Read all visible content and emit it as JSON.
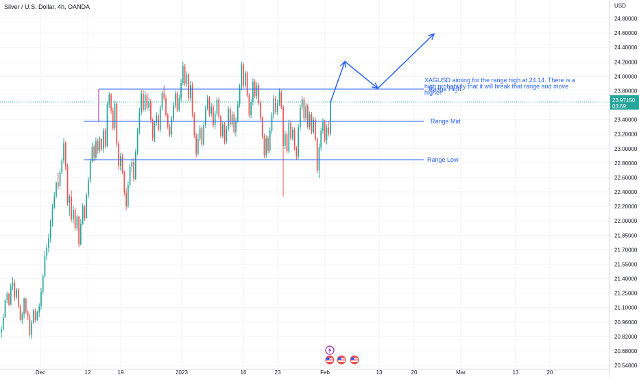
{
  "header": {
    "symbol_title": "Silver / U.S. Dollar, 4h, OANDA",
    "currency": "USD"
  },
  "price_tag": {
    "price": "23.97150",
    "countdown": "03:59"
  },
  "annotation": {
    "lines": [
      "XAGUSD aiming for the range high at 24.14. There is a",
      "high probability that it will break that range and move",
      "higher."
    ]
  },
  "colors": {
    "up": "#26a69a",
    "down": "#ef5350",
    "drawing": "#2962ff",
    "range_high_line": "#9c27b0",
    "grid": "#f0f3fa",
    "price_tag": "#26a69a"
  },
  "icons": [
    "lightning-event-icon",
    "us-flag-event-icon",
    "us-flag-event-icon",
    "us-flag-event-icon"
  ],
  "chart_data": {
    "type": "candlestick",
    "y_axis": {
      "scale": "linear",
      "range": [
        20.54,
        25.06
      ],
      "tick_labels": [
        "24.80000",
        "24.60000",
        "24.40000",
        "24.20000",
        "24.00000",
        "23.80000",
        "23.60000",
        "23.40000",
        "23.20000",
        "23.00000",
        "22.80000",
        "22.60000",
        "22.40000",
        "22.20000",
        "22.00000",
        "21.85000",
        "21.70000",
        "21.55000",
        "21.40000",
        "21.25000",
        "21.10000",
        "20.96000",
        "20.82000",
        "20.68000",
        "20.54000"
      ]
    },
    "x_axis": {
      "type": "date",
      "tick_labels": [
        "Dec",
        "12",
        "19",
        "2023",
        "16",
        "23",
        "Feb",
        "13",
        "20",
        "Mar",
        "13",
        "20"
      ]
    },
    "grid": true,
    "levels": [
      {
        "name": "Range High",
        "value": 24.14
      },
      {
        "name": "Range Mid",
        "value": 23.72
      },
      {
        "name": "Range Low",
        "value": 23.22
      }
    ],
    "last_price": 23.9715,
    "projection_path": [
      23.97,
      24.5,
      24.15,
      24.86
    ],
    "candles": [
      [
        20.97,
        21.05,
        20.9,
        21.01
      ],
      [
        21.01,
        21.21,
        20.99,
        21.16
      ],
      [
        21.16,
        21.4,
        21.16,
        21.39
      ],
      [
        21.39,
        21.5,
        21.35,
        21.47
      ],
      [
        21.47,
        21.49,
        21.31,
        21.33
      ],
      [
        21.33,
        21.61,
        21.32,
        21.57
      ],
      [
        21.57,
        21.69,
        21.52,
        21.61
      ],
      [
        21.61,
        21.66,
        21.38,
        21.43
      ],
      [
        21.43,
        21.55,
        21.4,
        21.53
      ],
      [
        21.53,
        21.55,
        21.29,
        21.31
      ],
      [
        21.31,
        21.33,
        21.12,
        21.13
      ],
      [
        21.13,
        21.24,
        21.08,
        21.21
      ],
      [
        21.21,
        21.43,
        21.15,
        21.41
      ],
      [
        21.41,
        21.42,
        21.21,
        21.24
      ],
      [
        21.24,
        21.26,
        21.13,
        21.18
      ],
      [
        21.18,
        21.21,
        20.91,
        20.94
      ],
      [
        20.94,
        21.13,
        20.88,
        21.1
      ],
      [
        21.1,
        21.28,
        21.08,
        21.25
      ],
      [
        21.25,
        21.28,
        21.1,
        21.13
      ],
      [
        21.13,
        21.25,
        21.12,
        21.23
      ],
      [
        21.23,
        21.35,
        21.17,
        21.31
      ],
      [
        21.31,
        21.55,
        21.26,
        21.5
      ],
      [
        21.5,
        21.73,
        21.46,
        21.7
      ],
      [
        21.7,
        22.03,
        21.68,
        21.96
      ],
      [
        21.96,
        22.12,
        21.91,
        22.07
      ],
      [
        22.07,
        22.26,
        22.01,
        22.2
      ],
      [
        22.2,
        22.44,
        22.14,
        22.42
      ],
      [
        22.42,
        22.64,
        22.35,
        22.6
      ],
      [
        22.6,
        22.8,
        22.58,
        22.74
      ],
      [
        22.74,
        22.94,
        22.72,
        22.92
      ],
      [
        22.92,
        23.05,
        22.83,
        22.88
      ],
      [
        22.88,
        23.1,
        22.84,
        23.06
      ],
      [
        23.06,
        23.24,
        23.03,
        23.21
      ],
      [
        23.21,
        23.5,
        23.17,
        23.44
      ],
      [
        23.44,
        23.46,
        23.08,
        23.13
      ],
      [
        23.13,
        23.17,
        22.62,
        22.66
      ],
      [
        22.66,
        22.77,
        22.49,
        22.74
      ],
      [
        22.74,
        22.82,
        22.41,
        22.44
      ],
      [
        22.44,
        22.62,
        22.39,
        22.57
      ],
      [
        22.57,
        22.59,
        22.3,
        22.33
      ],
      [
        22.33,
        22.5,
        22.29,
        22.48
      ],
      [
        22.48,
        22.49,
        22.08,
        22.12
      ],
      [
        22.12,
        22.45,
        22.1,
        22.38
      ],
      [
        22.38,
        22.65,
        22.37,
        22.61
      ],
      [
        22.61,
        22.63,
        22.42,
        22.46
      ],
      [
        22.46,
        22.79,
        22.45,
        22.76
      ],
      [
        22.76,
        22.99,
        22.72,
        22.95
      ],
      [
        22.95,
        23.23,
        22.92,
        23.2
      ],
      [
        23.2,
        23.44,
        23.18,
        23.39
      ],
      [
        23.39,
        23.42,
        23.2,
        23.25
      ],
      [
        23.25,
        23.51,
        23.21,
        23.46
      ],
      [
        23.46,
        23.49,
        23.29,
        23.34
      ],
      [
        23.34,
        23.52,
        23.31,
        23.49
      ],
      [
        23.49,
        23.5,
        23.33,
        23.36
      ],
      [
        23.36,
        23.63,
        23.31,
        23.6
      ],
      [
        23.6,
        23.63,
        23.37,
        23.4
      ],
      [
        23.4,
        23.97,
        23.38,
        23.94
      ],
      [
        23.94,
        24.1,
        23.89,
        24.07
      ],
      [
        24.07,
        24.09,
        23.82,
        23.86
      ],
      [
        23.86,
        23.9,
        23.6,
        23.63
      ],
      [
        23.63,
        23.99,
        23.6,
        23.95
      ],
      [
        23.95,
        23.97,
        23.38,
        23.43
      ],
      [
        23.43,
        23.46,
        23.09,
        23.14
      ],
      [
        23.14,
        23.31,
        23.08,
        23.26
      ],
      [
        23.26,
        23.3,
        23.03,
        23.06
      ],
      [
        23.06,
        23.08,
        22.75,
        22.79
      ],
      [
        22.79,
        22.85,
        22.56,
        22.61
      ],
      [
        22.61,
        22.94,
        22.59,
        22.89
      ],
      [
        22.89,
        23.17,
        22.85,
        23.13
      ],
      [
        23.13,
        23.24,
        23.06,
        23.19
      ],
      [
        23.19,
        23.24,
        22.93,
        22.97
      ],
      [
        22.97,
        23.36,
        22.95,
        23.32
      ],
      [
        23.32,
        23.63,
        23.28,
        23.59
      ],
      [
        23.59,
        23.9,
        23.55,
        23.84
      ],
      [
        23.84,
        24.13,
        23.8,
        24.08
      ],
      [
        24.08,
        24.13,
        23.84,
        23.87
      ],
      [
        23.87,
        24.12,
        23.84,
        24.06
      ],
      [
        24.06,
        24.09,
        23.87,
        23.9
      ],
      [
        23.9,
        24.03,
        23.85,
        23.98
      ],
      [
        23.98,
        24.01,
        23.7,
        23.74
      ],
      [
        23.74,
        23.76,
        23.46,
        23.5
      ],
      [
        23.5,
        23.73,
        23.45,
        23.7
      ],
      [
        23.7,
        23.84,
        23.66,
        23.79
      ],
      [
        23.79,
        23.82,
        23.58,
        23.61
      ],
      [
        23.61,
        23.93,
        23.58,
        23.9
      ],
      [
        23.9,
        24.12,
        23.86,
        24.09
      ],
      [
        24.09,
        24.19,
        23.99,
        24.02
      ],
      [
        24.02,
        24.06,
        23.78,
        23.8
      ],
      [
        23.8,
        23.83,
        23.62,
        23.65
      ],
      [
        23.65,
        23.68,
        23.52,
        23.55
      ],
      [
        23.55,
        23.79,
        23.51,
        23.75
      ],
      [
        23.75,
        23.97,
        23.71,
        23.93
      ],
      [
        23.93,
        24.12,
        23.89,
        24.08
      ],
      [
        24.08,
        24.11,
        23.84,
        23.87
      ],
      [
        23.87,
        24.07,
        23.84,
        24.02
      ],
      [
        24.02,
        24.27,
        23.98,
        24.22
      ],
      [
        24.22,
        24.5,
        24.19,
        24.44
      ],
      [
        24.44,
        24.47,
        24.18,
        24.21
      ],
      [
        24.21,
        24.37,
        24.17,
        24.33
      ],
      [
        24.33,
        24.35,
        23.98,
        24.02
      ],
      [
        24.02,
        24.25,
        23.99,
        24.19
      ],
      [
        24.19,
        24.23,
        23.77,
        23.81
      ],
      [
        23.81,
        23.84,
        23.5,
        23.54
      ],
      [
        23.54,
        23.57,
        23.25,
        23.3
      ],
      [
        23.3,
        23.55,
        23.27,
        23.49
      ],
      [
        23.49,
        23.67,
        23.46,
        23.63
      ],
      [
        23.63,
        23.66,
        23.39,
        23.42
      ],
      [
        23.42,
        23.71,
        23.4,
        23.67
      ],
      [
        23.67,
        23.93,
        23.63,
        23.89
      ],
      [
        23.89,
        24.06,
        23.86,
        24.02
      ],
      [
        24.02,
        24.05,
        23.78,
        23.82
      ],
      [
        23.82,
        23.96,
        23.78,
        23.91
      ],
      [
        23.91,
        23.94,
        23.64,
        23.67
      ],
      [
        23.67,
        23.86,
        23.62,
        23.82
      ],
      [
        23.82,
        24.04,
        23.79,
        24.0
      ],
      [
        24.0,
        24.03,
        23.75,
        23.78
      ],
      [
        23.78,
        23.8,
        23.5,
        23.53
      ],
      [
        23.53,
        23.72,
        23.5,
        23.68
      ],
      [
        23.68,
        23.71,
        23.42,
        23.46
      ],
      [
        23.46,
        23.66,
        23.43,
        23.62
      ],
      [
        23.62,
        23.92,
        23.59,
        23.88
      ],
      [
        23.88,
        23.91,
        23.65,
        23.68
      ],
      [
        23.68,
        23.85,
        23.65,
        23.81
      ],
      [
        23.81,
        23.84,
        23.55,
        23.58
      ],
      [
        23.58,
        23.77,
        23.52,
        23.73
      ],
      [
        23.73,
        23.99,
        23.7,
        23.94
      ],
      [
        23.94,
        24.21,
        23.9,
        24.17
      ],
      [
        24.17,
        24.5,
        24.12,
        24.46
      ],
      [
        24.46,
        24.49,
        24.15,
        24.19
      ],
      [
        24.19,
        24.38,
        24.16,
        24.35
      ],
      [
        24.35,
        24.37,
        24.03,
        24.06
      ],
      [
        24.06,
        24.09,
        23.77,
        23.8
      ],
      [
        23.8,
        24.01,
        23.76,
        23.97
      ],
      [
        23.97,
        24.28,
        23.93,
        24.24
      ],
      [
        24.24,
        24.27,
        24.02,
        24.05
      ],
      [
        24.05,
        24.23,
        24.01,
        24.19
      ],
      [
        24.19,
        24.22,
        23.93,
        23.96
      ],
      [
        23.96,
        23.99,
        23.73,
        23.77
      ],
      [
        23.77,
        23.79,
        23.49,
        23.53
      ],
      [
        23.53,
        23.56,
        23.24,
        23.28
      ],
      [
        23.28,
        23.54,
        23.24,
        23.5
      ],
      [
        23.5,
        23.53,
        23.3,
        23.34
      ],
      [
        23.34,
        23.64,
        23.31,
        23.6
      ],
      [
        23.6,
        23.84,
        23.56,
        23.8
      ],
      [
        23.8,
        24.06,
        23.76,
        24.02
      ],
      [
        24.02,
        24.05,
        23.81,
        23.84
      ],
      [
        23.84,
        24.0,
        23.8,
        23.96
      ],
      [
        23.96,
        24.15,
        23.92,
        24.1
      ],
      [
        24.1,
        24.13,
        23.88,
        23.91
      ],
      [
        23.91,
        23.93,
        22.74,
        23.4
      ],
      [
        23.4,
        23.6,
        23.36,
        23.55
      ],
      [
        23.55,
        23.58,
        23.3,
        23.33
      ],
      [
        23.33,
        23.74,
        23.3,
        23.7
      ],
      [
        23.7,
        23.73,
        23.47,
        23.5
      ],
      [
        23.5,
        23.65,
        23.47,
        23.61
      ],
      [
        23.61,
        23.64,
        23.34,
        23.37
      ],
      [
        23.37,
        23.4,
        23.22,
        23.26
      ],
      [
        23.26,
        23.68,
        23.23,
        23.64
      ],
      [
        23.64,
        23.94,
        23.6,
        23.9
      ],
      [
        23.9,
        24.05,
        23.86,
        24.01
      ],
      [
        24.01,
        24.04,
        23.72,
        23.76
      ],
      [
        23.76,
        23.96,
        23.73,
        23.92
      ],
      [
        23.92,
        23.95,
        23.62,
        23.65
      ],
      [
        23.65,
        23.85,
        23.61,
        23.81
      ],
      [
        23.81,
        23.84,
        23.55,
        23.58
      ],
      [
        23.58,
        23.78,
        23.55,
        23.74
      ],
      [
        23.74,
        23.77,
        23.46,
        23.49
      ],
      [
        23.49,
        23.51,
        23.04,
        23.08
      ],
      [
        23.08,
        23.43,
        22.98,
        23.38
      ],
      [
        23.38,
        23.64,
        23.34,
        23.6
      ],
      [
        23.6,
        23.76,
        23.56,
        23.71
      ],
      [
        23.71,
        23.74,
        23.44,
        23.47
      ],
      [
        23.47,
        23.68,
        23.42,
        23.64
      ],
      [
        23.64,
        23.72,
        23.52,
        23.56
      ],
      [
        23.56,
        23.97,
        23.53,
        23.97
      ]
    ]
  }
}
